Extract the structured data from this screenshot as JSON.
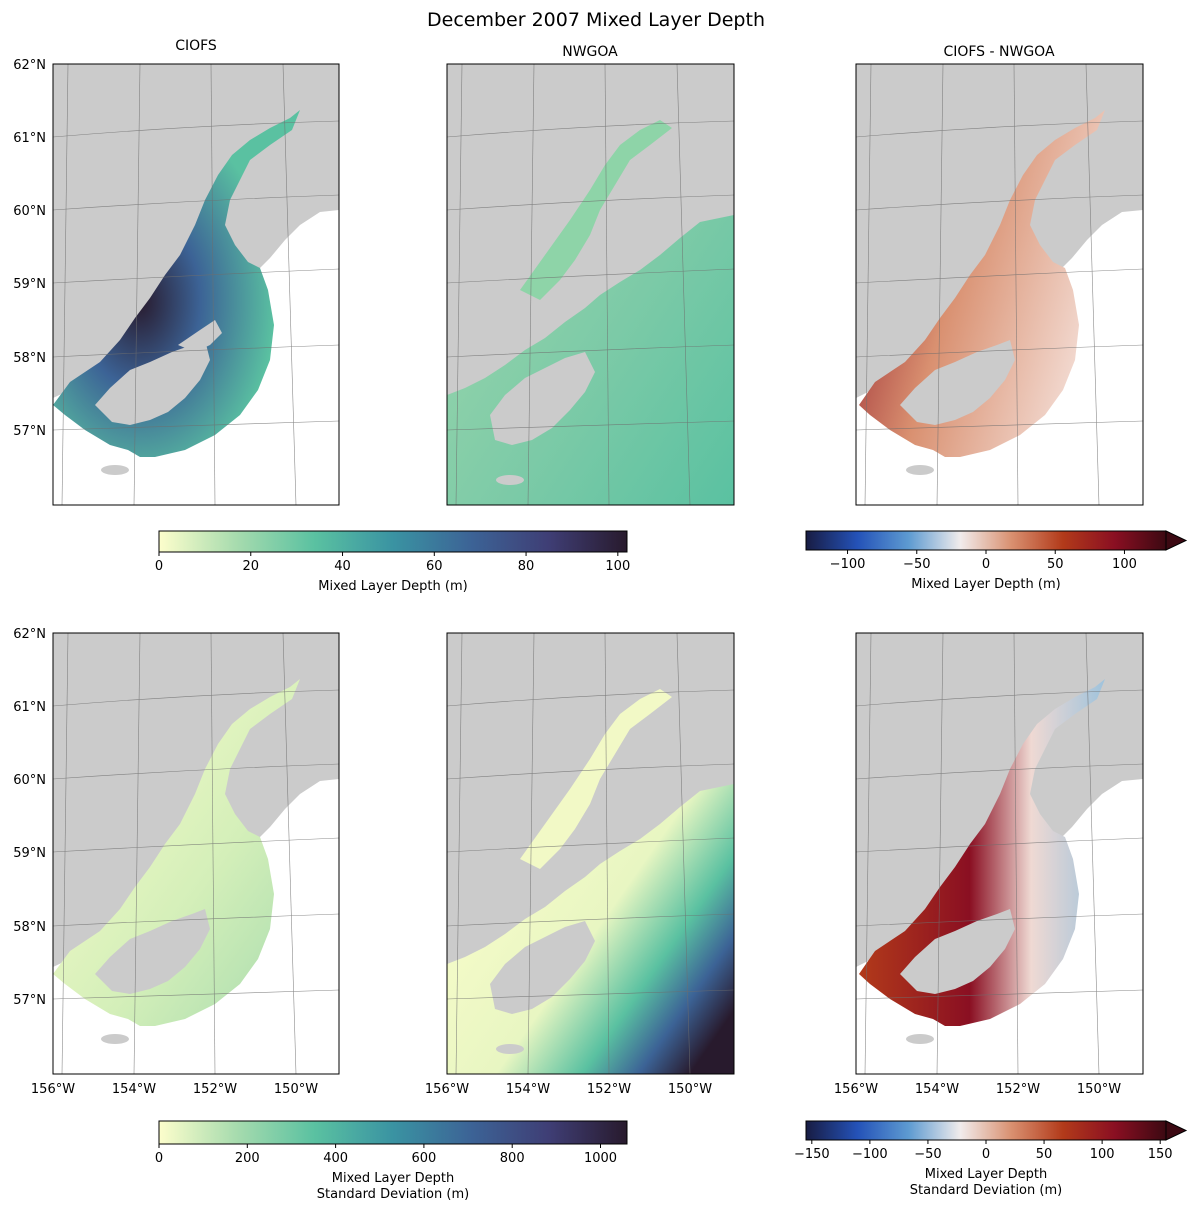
{
  "figure": {
    "title": "December 2007 Mixed Layer Depth",
    "columns": [
      "CIOFS",
      "NWGOA",
      "CIOFS - NWGOA"
    ]
  },
  "chart_data": [
    {
      "type": "heatmap",
      "panel": "top-left",
      "title": "CIOFS",
      "variable": "Mixed Layer Depth (m)",
      "projection": "map (lat/lon graticule)",
      "lat_ticks": [
        "62°N",
        "61°N",
        "60°N",
        "59°N",
        "58°N",
        "57°N"
      ],
      "lon_ticks": [],
      "colormap": "deep (light yellow → teal → dark purple)",
      "approx_value_range": [
        0,
        102
      ]
    },
    {
      "type": "heatmap",
      "panel": "top-center",
      "title": "NWGOA",
      "variable": "Mixed Layer Depth (m)",
      "colormap": "deep",
      "approx_value_range": [
        0,
        102
      ]
    },
    {
      "type": "heatmap",
      "panel": "top-right",
      "title": "CIOFS - NWGOA",
      "variable": "Mixed Layer Depth (m)",
      "colormap": "balance (diverging, blue → white → red)",
      "approx_value_range": [
        -130,
        130
      ]
    },
    {
      "type": "heatmap",
      "panel": "bottom-left",
      "variable": "Mixed Layer Depth Standard Deviation (m)",
      "lat_ticks": [
        "62°N",
        "61°N",
        "60°N",
        "59°N",
        "58°N",
        "57°N"
      ],
      "lon_ticks": [
        "156°W",
        "154°W",
        "152°W",
        "150°W"
      ],
      "colormap": "deep",
      "approx_value_range": [
        0,
        1060
      ]
    },
    {
      "type": "heatmap",
      "panel": "bottom-center",
      "variable": "Mixed Layer Depth Standard Deviation (m)",
      "lon_ticks": [
        "156°W",
        "154°W",
        "152°W",
        "150°W"
      ],
      "colormap": "deep",
      "approx_value_range": [
        0,
        1060
      ]
    },
    {
      "type": "heatmap",
      "panel": "bottom-right",
      "variable": "Mixed Layer Depth Standard Deviation (m)",
      "lon_ticks": [
        "156°W",
        "154°W",
        "152°W",
        "150°W"
      ],
      "colormap": "balance",
      "approx_value_range": [
        -155,
        155
      ]
    }
  ],
  "colorbars": {
    "top_left": {
      "label_lines": [
        "Mixed Layer Depth (m)"
      ],
      "min": 0,
      "max": 102,
      "ticks": [
        0,
        20,
        40,
        60,
        80,
        100
      ],
      "colors": [
        "#fdfecc",
        "#a6dbae",
        "#5ac1a1",
        "#3a93a2",
        "#3c6396",
        "#3f3e75",
        "#281a2d"
      ]
    },
    "top_right": {
      "label_lines": [
        "Mixed Layer Depth (m)"
      ],
      "min": -130,
      "max": 130,
      "ticks": [
        -100,
        -50,
        0,
        50,
        100
      ],
      "tick_labels": [
        "−100",
        "−50",
        "0",
        "50",
        "100"
      ],
      "extend": "max",
      "colors": [
        "#181c43",
        "#2452b8",
        "#5e9bd1",
        "#f1ecec",
        "#d99070",
        "#b23a1a",
        "#8a0f22",
        "#3c0912"
      ]
    },
    "bottom_left": {
      "label_lines": [
        "Mixed Layer Depth",
        "Standard Deviation (m)"
      ],
      "min": 0,
      "max": 1060,
      "ticks": [
        0,
        200,
        400,
        600,
        800,
        1000
      ],
      "colors": [
        "#fdfecc",
        "#a6dbae",
        "#5ac1a1",
        "#3a93a2",
        "#3c6396",
        "#3f3e75",
        "#281a2d"
      ]
    },
    "bottom_right": {
      "label_lines": [
        "Mixed Layer Depth",
        "Standard Deviation (m)"
      ],
      "min": -155,
      "max": 155,
      "ticks": [
        -150,
        -100,
        -50,
        0,
        50,
        100,
        150
      ],
      "tick_labels": [
        "−150",
        "−100",
        "−50",
        "0",
        "50",
        "100",
        "150"
      ],
      "extend": "max",
      "colors": [
        "#181c43",
        "#2452b8",
        "#5e9bd1",
        "#f1ecec",
        "#d99070",
        "#b23a1a",
        "#8a0f22",
        "#3c0912"
      ]
    }
  },
  "colors": {
    "land": "#cbcbcb",
    "ocean_nodata": "#ffffff",
    "grid": "#6e6e6e"
  }
}
